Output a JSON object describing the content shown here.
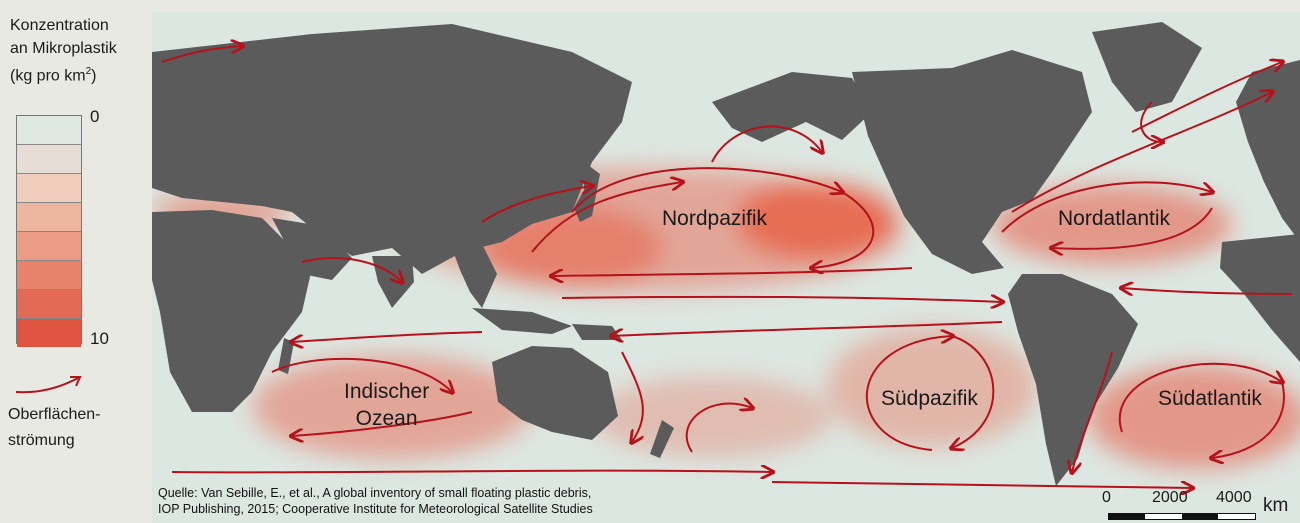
{
  "legend": {
    "title_line1": "Konzentration",
    "title_line2": "an Mikroplastik",
    "title_line3_pre": "(kg pro km",
    "title_line3_sup": "2",
    "title_line3_post": ")",
    "scale_min": "0",
    "scale_max": "10",
    "color_steps": [
      "#dfe8e3",
      "#e6ddd6",
      "#f1cdbe",
      "#eeb59f",
      "#ec9b84",
      "#e8836b",
      "#e36a54",
      "#df5441"
    ],
    "current_label_line1": "Oberflächen-",
    "current_label_line2": "strömung",
    "current_color": "#b5121b"
  },
  "map": {
    "colors": {
      "ocean": "#dde7e2",
      "land": "#5b5b5b",
      "plastic": "#e8583e",
      "current": "#b5121b"
    },
    "regions": {
      "north_pacific": "Nordpazifik",
      "north_atlantic": "Nordatlantik",
      "indian_ocean_line1": "Indischer",
      "indian_ocean_line2": "Ozean",
      "south_pacific": "Südpazifik",
      "south_atlantic": "Südatlantik"
    },
    "source_line1": "Quelle: Van Sebille, E., et al., A global inventory of small floating plastic debris,",
    "source_line2": "IOP Publishing, 2015; Cooperative Institute for Meteorological Satellite Studies",
    "scale": {
      "label_0": "0",
      "label_2000": "2000",
      "label_4000": "4000",
      "unit": "km"
    }
  }
}
